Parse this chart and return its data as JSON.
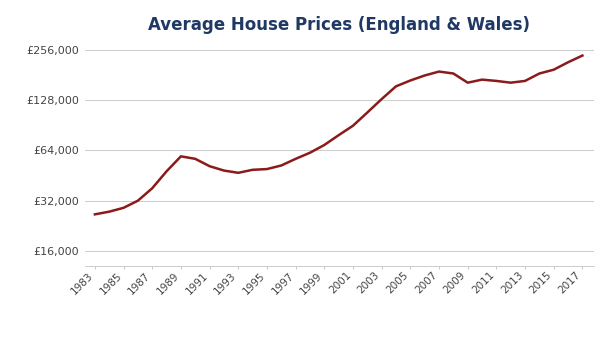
{
  "title": "Average House Prices (England & Wales)",
  "title_color": "#1f3864",
  "line_color": "#8B1A1A",
  "background_color": "#ffffff",
  "years": [
    1983,
    1984,
    1985,
    1986,
    1987,
    1988,
    1989,
    1990,
    1991,
    1992,
    1993,
    1994,
    1995,
    1996,
    1997,
    1998,
    1999,
    2000,
    2001,
    2002,
    2003,
    2004,
    2005,
    2006,
    2007,
    2008,
    2009,
    2010,
    2011,
    2012,
    2013,
    2014,
    2015,
    2016,
    2017
  ],
  "prices": [
    26500,
    27500,
    29000,
    32000,
    38000,
    48000,
    59000,
    57000,
    51500,
    48500,
    47000,
    49000,
    49500,
    52000,
    57000,
    62000,
    69000,
    79000,
    90000,
    108000,
    130000,
    155000,
    168000,
    180000,
    190000,
    185000,
    163000,
    170000,
    167000,
    163000,
    167000,
    185000,
    195000,
    216000,
    237000
  ],
  "yticks": [
    16000,
    32000,
    64000,
    128000,
    256000
  ],
  "ytick_labels": [
    "£16,000",
    "£32,000",
    "£64,000",
    "£128,000",
    "£256,000"
  ],
  "xtick_start": 1983,
  "xtick_end": 2017,
  "xtick_step": 2,
  "grid_color": "#cccccc",
  "line_width": 1.8,
  "ylim_min": 13000,
  "ylim_max": 290000,
  "xlim_min": 1982.3,
  "xlim_max": 2017.8
}
